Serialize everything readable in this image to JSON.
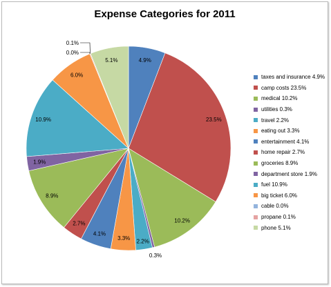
{
  "chart_data": {
    "type": "pie",
    "title": "Expense Categories for 2011",
    "legend_position": "right",
    "slices": [
      {
        "label": "taxes and insurance",
        "value": 4.9,
        "display": "4.9%",
        "color": "#4f81bd"
      },
      {
        "label": "camp costs",
        "value": 23.5,
        "display": "23.5%",
        "color": "#c0504d"
      },
      {
        "label": "medical",
        "value": 10.2,
        "display": "10.2%",
        "color": "#9bbb59"
      },
      {
        "label": "utilities",
        "value": 0.3,
        "display": "0.3%",
        "color": "#8064a2"
      },
      {
        "label": "travel",
        "value": 2.2,
        "display": "2.2%",
        "color": "#4bacc6"
      },
      {
        "label": "eating out",
        "value": 3.3,
        "display": "3.3%",
        "color": "#f79646"
      },
      {
        "label": "entertainment",
        "value": 4.1,
        "display": "4.1%",
        "color": "#4f81bd"
      },
      {
        "label": "home repair",
        "value": 2.7,
        "display": "2.7%",
        "color": "#c0504d"
      },
      {
        "label": "groceries",
        "value": 8.9,
        "display": "8.9%",
        "color": "#9bbb59"
      },
      {
        "label": "department store",
        "value": 1.9,
        "display": "1.9%",
        "color": "#8064a2"
      },
      {
        "label": "fuel",
        "value": 10.9,
        "display": "10.9%",
        "color": "#4bacc6"
      },
      {
        "label": "big ticket",
        "value": 6.0,
        "display": "6.0%",
        "color": "#f79646"
      },
      {
        "label": "cable",
        "value": 0.0,
        "display": "0.0%",
        "color": "#94b4dd"
      },
      {
        "label": "propane",
        "value": 0.1,
        "display": "0.1%",
        "color": "#e5a3a2"
      },
      {
        "label": "phone",
        "value": 5.1,
        "display": "5.1%",
        "color": "#c6d9a4"
      }
    ],
    "legend_entries": [
      "taxes and insurance 4.9%",
      "camp costs 23.5%",
      "medical 10.2%",
      "utilities 0.3%",
      "travel 2.2%",
      "eating out 3.3%",
      "entertainment 4.1%",
      "home repair 2.7%",
      "groceries 8.9%",
      "department store 1.9%",
      "fuel 10.9%",
      "big ticket 6.0%",
      "cable 0.0%",
      "propane 0.1%",
      "phone 5.1%"
    ]
  }
}
